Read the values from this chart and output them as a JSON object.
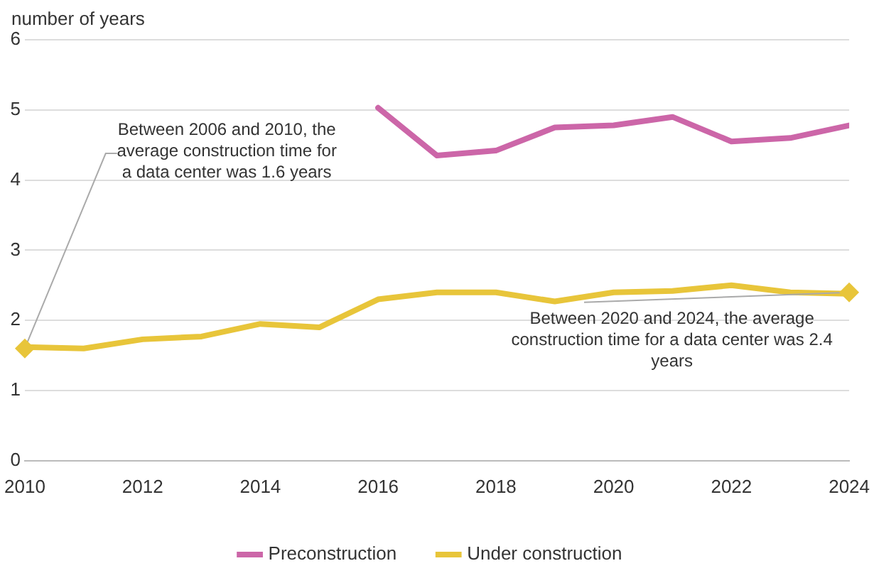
{
  "chart_data": {
    "type": "line",
    "ylabel": "number of years",
    "x": [
      2010,
      2011,
      2012,
      2013,
      2014,
      2015,
      2016,
      2017,
      2018,
      2019,
      2020,
      2021,
      2022,
      2023,
      2024
    ],
    "series": [
      {
        "name": "Preconstruction",
        "color": "#cc66a8",
        "values": [
          null,
          null,
          null,
          null,
          null,
          null,
          5.03,
          4.35,
          4.42,
          4.75,
          4.78,
          4.9,
          4.55,
          4.6,
          4.78
        ]
      },
      {
        "name": "Under construction",
        "color": "#e8c53a",
        "values": [
          1.62,
          1.6,
          1.73,
          1.77,
          1.95,
          1.9,
          2.3,
          2.4,
          2.4,
          2.27,
          2.4,
          2.42,
          2.5,
          2.4,
          2.38
        ]
      }
    ],
    "xlim": [
      2010,
      2024
    ],
    "xticks": [
      2010,
      2012,
      2014,
      2016,
      2018,
      2020,
      2022,
      2024
    ],
    "ylim": [
      0,
      6
    ],
    "yticks": [
      0,
      1,
      2,
      3,
      4,
      5,
      6
    ],
    "grid": "y",
    "legend": "bottom",
    "marker": "none",
    "line_style": "solid",
    "annotations": [
      {
        "text": "Between 2006 and 2010, the average construction time for a data center was 1.6 years",
        "x": 2010,
        "y": 1.6
      },
      {
        "text": "Between 2020 and 2024, the average construction time for a data center was 2.4 years",
        "x": 2024,
        "y": 2.4
      }
    ]
  }
}
